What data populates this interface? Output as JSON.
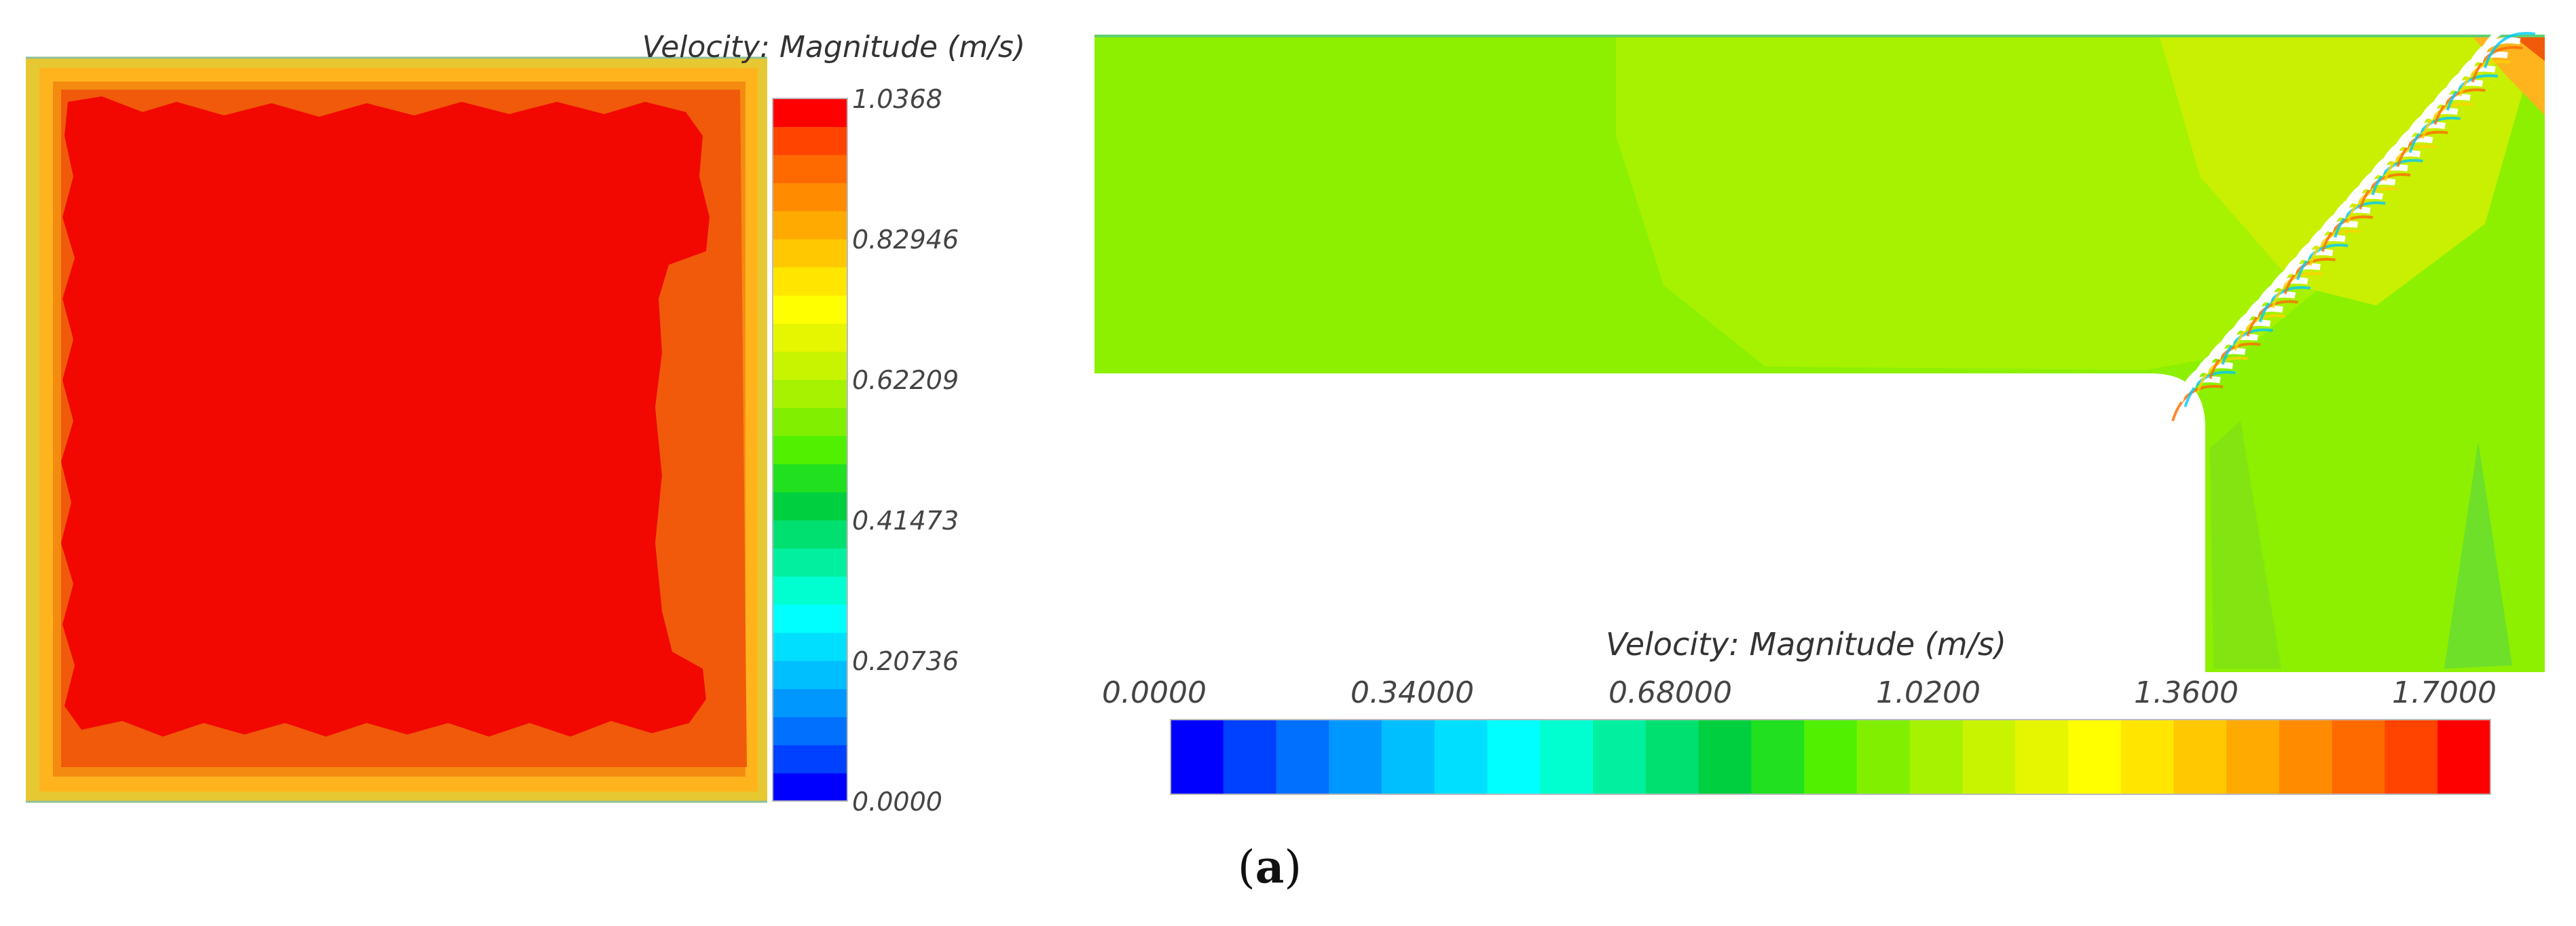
{
  "panel_left": {
    "legend_title": "Velocity: Magnitude (m/s)",
    "ticks": [
      "1.0368",
      "0.82946",
      "0.62209",
      "0.41473",
      "0.20736",
      "0.0000"
    ],
    "colors": {
      "high": "#f20800",
      "upper": "#f05a0a",
      "band": "#f58a10",
      "edge": "#ffb41e",
      "rim": "#e6c832"
    }
  },
  "panel_right": {
    "legend_title": "Velocity: Magnitude (m/s)",
    "ticks": [
      "0.0000",
      "0.34000",
      "0.68000",
      "1.0200",
      "1.3600",
      "1.7000"
    ],
    "colors": {
      "main": "#8cf000",
      "light": "#a6f200",
      "yellowish": "#c8f000",
      "green": "#6ee02a"
    }
  },
  "caption": {
    "open": "(",
    "letter": "a",
    "close": ")"
  },
  "colormap": [
    "#0000ff",
    "#0040ff",
    "#0070ff",
    "#0098ff",
    "#00bfff",
    "#00dfff",
    "#00ffff",
    "#00ffd0",
    "#00f0a0",
    "#00e070",
    "#00d040",
    "#20e020",
    "#50f000",
    "#80f000",
    "#a6f200",
    "#c8f400",
    "#e6f600",
    "#ffff00",
    "#ffe600",
    "#ffc800",
    "#ffaa00",
    "#ff8c00",
    "#ff6a00",
    "#ff4400",
    "#ff0000"
  ]
}
